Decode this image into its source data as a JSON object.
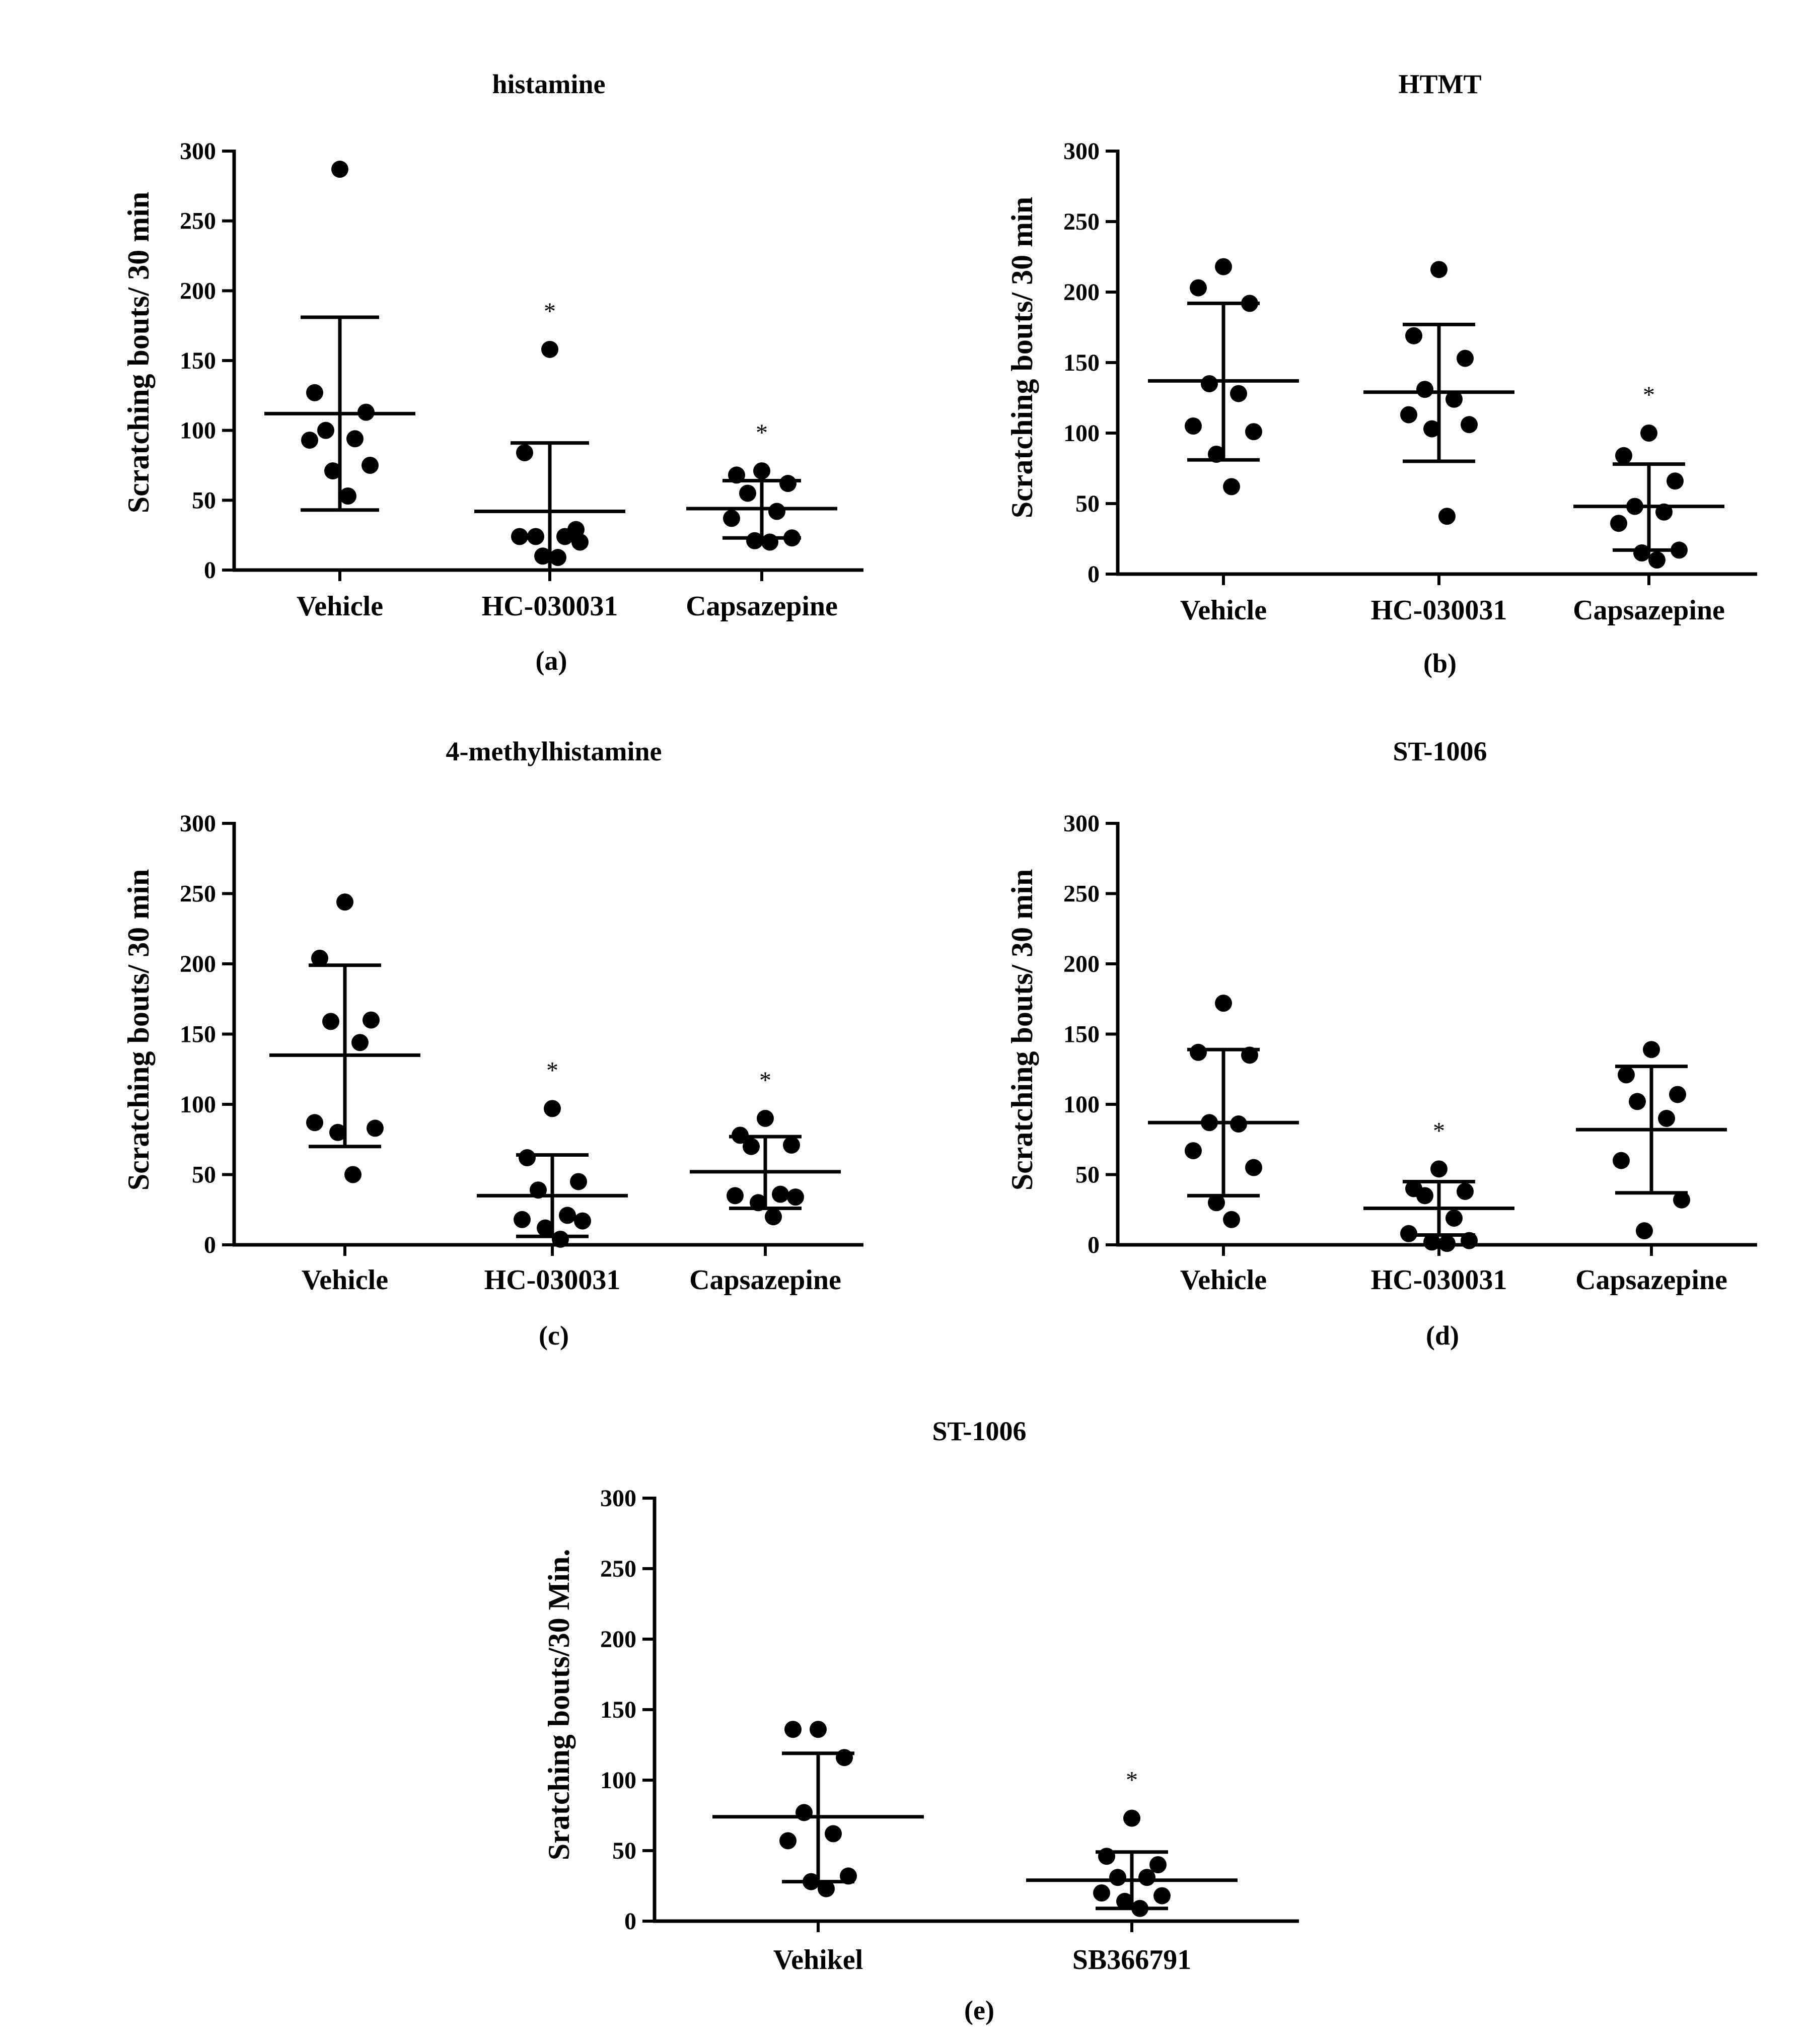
{
  "chart_data": [
    {
      "id": "a",
      "type": "scatter",
      "title": "histamine",
      "panel_label": "(a)",
      "ylabel": "Scratching bouts/ 30 min",
      "xlabel": "",
      "ylim": [
        0,
        300
      ],
      "yticks": [
        0,
        50,
        100,
        150,
        200,
        250,
        300
      ],
      "categories": [
        "Vehicle",
        "HC-030031",
        "Capsazepine"
      ],
      "groups": [
        {
          "name": "Vehicle",
          "mean": 112,
          "sd_low": 43,
          "sd_high": 181,
          "significant": false,
          "points": [
            287,
            127,
            113,
            100,
            94,
            93,
            75,
            71,
            53
          ]
        },
        {
          "name": "HC-030031",
          "mean": 42,
          "sd_low": 0,
          "sd_high": 91,
          "significant": true,
          "points": [
            158,
            84,
            29,
            24,
            24,
            24,
            20,
            10,
            9
          ]
        },
        {
          "name": "Capsazepine",
          "mean": 44,
          "sd_low": 23,
          "sd_high": 64,
          "significant": true,
          "points": [
            71,
            68,
            62,
            55,
            42,
            37,
            23,
            21,
            20
          ]
        }
      ],
      "significance_marker": "*"
    },
    {
      "id": "b",
      "type": "scatter",
      "title": "HTMT",
      "panel_label": "(b)",
      "ylabel": "Scratching bouts/ 30 min",
      "xlabel": "",
      "ylim": [
        0,
        300
      ],
      "yticks": [
        0,
        50,
        100,
        150,
        200,
        250,
        300
      ],
      "categories": [
        "Vehicle",
        "HC-030031",
        "Capsazepine"
      ],
      "groups": [
        {
          "name": "Vehicle",
          "mean": 137,
          "sd_low": 81,
          "sd_high": 192,
          "significant": false,
          "points": [
            218,
            203,
            192,
            135,
            128,
            105,
            101,
            85,
            62
          ]
        },
        {
          "name": "HC-030031",
          "mean": 129,
          "sd_low": 80,
          "sd_high": 177,
          "significant": false,
          "points": [
            216,
            169,
            153,
            131,
            124,
            113,
            106,
            103,
            41
          ]
        },
        {
          "name": "Capsazepine",
          "mean": 48,
          "sd_low": 17,
          "sd_high": 78,
          "significant": true,
          "points": [
            100,
            84,
            66,
            48,
            44,
            36,
            17,
            15,
            10
          ]
        }
      ],
      "significance_marker": "*"
    },
    {
      "id": "c",
      "type": "scatter",
      "title": "4-methylhistamine",
      "panel_label": "(c)",
      "ylabel": "Scratching bouts/ 30 min",
      "xlabel": "",
      "ylim": [
        0,
        300
      ],
      "yticks": [
        0,
        50,
        100,
        150,
        200,
        250,
        300
      ],
      "categories": [
        "Vehicle",
        "HC-030031",
        "Capsazepine"
      ],
      "groups": [
        {
          "name": "Vehicle",
          "mean": 135,
          "sd_low": 70,
          "sd_high": 199,
          "significant": false,
          "points": [
            244,
            204,
            160,
            159,
            144,
            87,
            83,
            80,
            50
          ]
        },
        {
          "name": "HC-030031",
          "mean": 35,
          "sd_low": 6,
          "sd_high": 64,
          "significant": true,
          "points": [
            97,
            62,
            45,
            39,
            21,
            18,
            17,
            12,
            4
          ]
        },
        {
          "name": "Capsazepine",
          "mean": 52,
          "sd_low": 26,
          "sd_high": 77,
          "significant": true,
          "points": [
            90,
            78,
            71,
            70,
            36,
            35,
            34,
            30,
            20
          ]
        }
      ],
      "significance_marker": "*"
    },
    {
      "id": "d",
      "type": "scatter",
      "title": "ST-1006",
      "panel_label": "(d)",
      "ylabel": "Scratching bouts/ 30 min",
      "xlabel": "",
      "ylim": [
        0,
        300
      ],
      "yticks": [
        0,
        50,
        100,
        150,
        200,
        250,
        300
      ],
      "categories": [
        "Vehicle",
        "HC-030031",
        "Capsazepine"
      ],
      "groups": [
        {
          "name": "Vehicle",
          "mean": 87,
          "sd_low": 35,
          "sd_high": 139,
          "significant": false,
          "points": [
            172,
            137,
            135,
            87,
            86,
            67,
            55,
            30,
            18
          ]
        },
        {
          "name": "HC-030031",
          "mean": 26,
          "sd_low": 7,
          "sd_high": 45,
          "significant": true,
          "points": [
            54,
            40,
            38,
            35,
            19,
            8,
            3,
            2,
            1
          ]
        },
        {
          "name": "Capsazepine",
          "mean": 82,
          "sd_low": 37,
          "sd_high": 127,
          "significant": false,
          "points": [
            139,
            121,
            107,
            102,
            90,
            60,
            32,
            10
          ]
        }
      ],
      "significance_marker": "*"
    },
    {
      "id": "e",
      "type": "scatter",
      "title": "ST-1006",
      "panel_label": "(e)",
      "ylabel": "Sratching bouts/30  Min.",
      "xlabel": "",
      "ylim": [
        0,
        300
      ],
      "yticks": [
        0,
        50,
        100,
        150,
        200,
        250,
        300
      ],
      "categories": [
        "Vehikel",
        "SB366791"
      ],
      "groups": [
        {
          "name": "Vehikel",
          "mean": 74,
          "sd_low": 28,
          "sd_high": 119,
          "significant": false,
          "points": [
            136,
            136,
            116,
            77,
            62,
            57,
            32,
            28,
            23
          ]
        },
        {
          "name": "SB366791",
          "mean": 29,
          "sd_low": 9,
          "sd_high": 49,
          "significant": true,
          "points": [
            73,
            46,
            40,
            31,
            31,
            20,
            18,
            14,
            9
          ]
        }
      ],
      "significance_marker": "*"
    }
  ]
}
